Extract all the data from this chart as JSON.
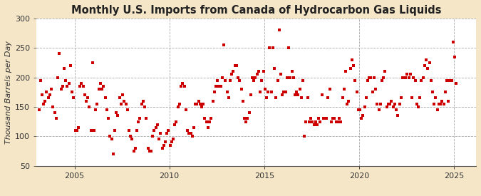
{
  "title": "Monthly U.S. Imports from Canada of Hydrocarbon Gas Liquids",
  "ylabel": "Thousand Barrels per Day",
  "ylim": [
    50,
    300
  ],
  "yticks": [
    50,
    100,
    150,
    200,
    250,
    300
  ],
  "bg_outer": "#f5e6c8",
  "bg_plot": "#ffffff",
  "marker_color": "#cc0000",
  "marker_size": 7,
  "title_fontsize": 10.5,
  "axis_fontsize": 8,
  "tick_fontsize": 8,
  "source_fontsize": 7,
  "start_year": 2003,
  "start_month": 2,
  "xlim_start": [
    2003,
    1
  ],
  "xlim_end": [
    2026,
    3
  ],
  "xgrid_years": [
    2005,
    2010,
    2015,
    2020,
    2025
  ],
  "values": [
    145,
    195,
    170,
    155,
    160,
    175,
    165,
    170,
    180,
    150,
    140,
    130,
    200,
    240,
    180,
    185,
    215,
    195,
    185,
    190,
    220,
    175,
    165,
    110,
    110,
    115,
    185,
    190,
    185,
    170,
    160,
    165,
    150,
    110,
    225,
    110,
    145,
    155,
    180,
    190,
    180,
    185,
    165,
    145,
    130,
    100,
    95,
    70,
    110,
    140,
    135,
    165,
    155,
    170,
    160,
    155,
    145,
    110,
    100,
    95,
    75,
    80,
    110,
    125,
    130,
    155,
    160,
    150,
    130,
    80,
    75,
    75,
    100,
    110,
    115,
    120,
    95,
    105,
    80,
    85,
    90,
    105,
    110,
    85,
    90,
    95,
    120,
    125,
    150,
    155,
    185,
    190,
    185,
    145,
    110,
    105,
    105,
    100,
    115,
    155,
    155,
    160,
    155,
    150,
    155,
    130,
    125,
    115,
    125,
    130,
    160,
    175,
    185,
    195,
    185,
    185,
    200,
    255,
    195,
    175,
    165,
    195,
    205,
    210,
    220,
    220,
    200,
    195,
    180,
    160,
    130,
    125,
    130,
    140,
    170,
    200,
    195,
    200,
    205,
    210,
    175,
    195,
    210,
    180,
    165,
    175,
    250,
    175,
    250,
    215,
    165,
    195,
    280,
    205,
    170,
    175,
    175,
    200,
    250,
    200,
    210,
    200,
    170,
    175,
    170,
    180,
    165,
    195,
    100,
    125,
    165,
    125,
    130,
    125,
    120,
    125,
    120,
    130,
    125,
    170,
    130,
    130,
    130,
    165,
    180,
    125,
    130,
    130,
    125,
    125,
    130,
    125,
    165,
    180,
    210,
    155,
    160,
    215,
    230,
    220,
    195,
    175,
    145,
    145,
    130,
    135,
    150,
    165,
    195,
    200,
    200,
    175,
    200,
    180,
    155,
    145,
    155,
    195,
    200,
    210,
    150,
    155,
    155,
    160,
    150,
    155,
    145,
    135,
    155,
    165,
    200,
    200,
    200,
    205,
    200,
    205,
    165,
    200,
    195,
    155,
    150,
    165,
    195,
    200,
    220,
    230,
    215,
    225,
    195,
    175,
    155,
    165,
    145,
    155,
    155,
    160,
    155,
    175,
    195,
    160,
    195,
    195,
    260,
    235,
    190
  ]
}
